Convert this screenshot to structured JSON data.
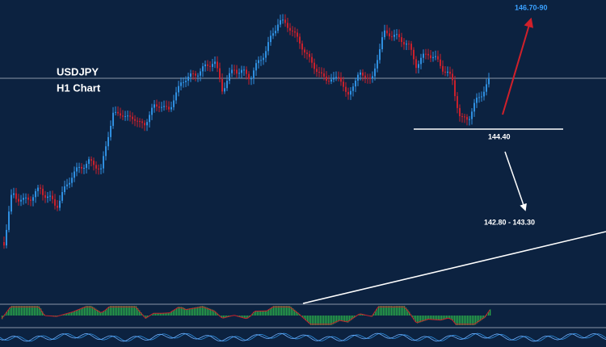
{
  "header": {
    "symbol": "USDJPY",
    "timeframe": "H1 Chart"
  },
  "annotations": {
    "target_up": "146.70-90",
    "support": "144.40",
    "target_down": "142.80 - 143.30"
  }
}
